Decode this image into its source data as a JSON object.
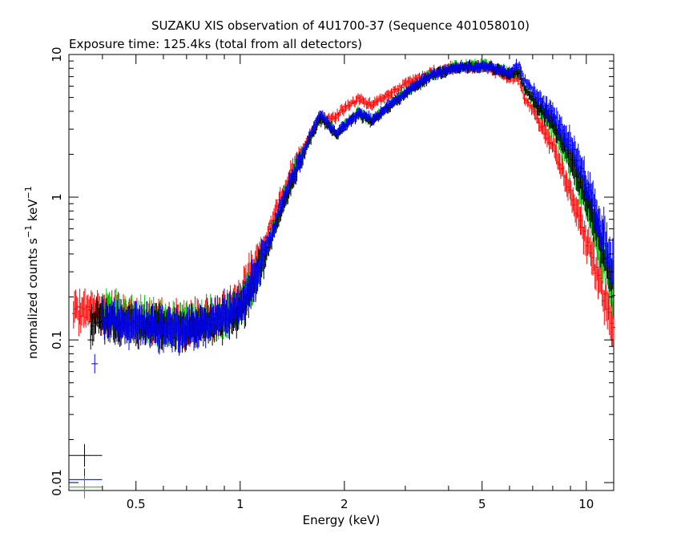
{
  "title": "SUZAKU XIS observation of 4U1700-37 (Sequence 401058010)",
  "subtitle": "Exposure time: 125.4ks (total from all detectors)",
  "chart_data": {
    "type": "scatter",
    "title": "SUZAKU XIS observation of 4U1700-37 (Sequence 401058010)",
    "subtitle": "Exposure time: 125.4ks (total from all detectors)",
    "xlabel": "Energy (keV)",
    "ylabel_parts": {
      "main": "normalized counts s",
      "sup1": "−1",
      "mid": " keV",
      "sup2": "−1"
    },
    "xscale": "log",
    "yscale": "log",
    "xlim": [
      0.32,
      12.0
    ],
    "ylim": [
      0.0088,
      10.0
    ],
    "grid": false,
    "legend": "none",
    "x_ticks": [
      {
        "value": 0.5,
        "label": "0.5"
      },
      {
        "value": 1,
        "label": "1"
      },
      {
        "value": 2,
        "label": "2"
      },
      {
        "value": 5,
        "label": "5"
      },
      {
        "value": 10,
        "label": "10"
      }
    ],
    "y_ticks": [
      {
        "value": 0.01,
        "label": "0.01"
      },
      {
        "value": 0.1,
        "label": "0.1"
      },
      {
        "value": 1,
        "label": "1"
      },
      {
        "value": 10,
        "label": "10"
      }
    ],
    "series": [
      {
        "color": "#ff0000",
        "points": [
          [
            0.33,
            0.15
          ],
          [
            0.36,
            0.16
          ],
          [
            0.4,
            0.16
          ],
          [
            0.45,
            0.15
          ],
          [
            0.5,
            0.14
          ],
          [
            0.6,
            0.13
          ],
          [
            0.7,
            0.13
          ],
          [
            0.8,
            0.14
          ],
          [
            0.9,
            0.16
          ],
          [
            1.0,
            0.2
          ],
          [
            1.1,
            0.33
          ],
          [
            1.2,
            0.55
          ],
          [
            1.3,
            0.95
          ],
          [
            1.4,
            1.5
          ],
          [
            1.5,
            2.1
          ],
          [
            1.6,
            2.8
          ],
          [
            1.7,
            3.6
          ],
          [
            1.8,
            3.6
          ],
          [
            1.9,
            3.7
          ],
          [
            2.0,
            4.2
          ],
          [
            2.2,
            4.9
          ],
          [
            2.4,
            4.4
          ],
          [
            2.6,
            5.0
          ],
          [
            3.0,
            6.2
          ],
          [
            3.5,
            7.3
          ],
          [
            4.0,
            8.0
          ],
          [
            4.5,
            8.3
          ],
          [
            5.0,
            8.2
          ],
          [
            5.5,
            7.6
          ],
          [
            6.0,
            6.8
          ],
          [
            6.4,
            6.7
          ],
          [
            6.6,
            5.0
          ],
          [
            7.0,
            4.1
          ],
          [
            8.0,
            2.3
          ],
          [
            9.0,
            1.1
          ],
          [
            10.0,
            0.5
          ],
          [
            11.0,
            0.25
          ],
          [
            12.0,
            0.11
          ]
        ]
      },
      {
        "color": "#00c800",
        "points": [
          [
            0.4,
            0.16
          ],
          [
            0.45,
            0.15
          ],
          [
            0.5,
            0.14
          ],
          [
            0.6,
            0.13
          ],
          [
            0.7,
            0.13
          ],
          [
            0.8,
            0.14
          ],
          [
            0.9,
            0.15
          ],
          [
            1.0,
            0.17
          ],
          [
            1.1,
            0.27
          ],
          [
            1.2,
            0.45
          ],
          [
            1.3,
            0.8
          ],
          [
            1.4,
            1.3
          ],
          [
            1.5,
            1.9
          ],
          [
            1.6,
            2.7
          ],
          [
            1.7,
            3.7
          ],
          [
            1.8,
            3.3
          ],
          [
            1.9,
            2.8
          ],
          [
            2.0,
            3.2
          ],
          [
            2.2,
            3.9
          ],
          [
            2.4,
            3.5
          ],
          [
            2.6,
            4.1
          ],
          [
            3.0,
            5.4
          ],
          [
            3.5,
            7.0
          ],
          [
            4.0,
            8.0
          ],
          [
            4.5,
            8.4
          ],
          [
            5.0,
            8.4
          ],
          [
            5.5,
            8.0
          ],
          [
            6.0,
            7.4
          ],
          [
            6.4,
            7.6
          ],
          [
            6.6,
            5.8
          ],
          [
            7.0,
            4.9
          ],
          [
            8.0,
            3.1
          ],
          [
            9.0,
            1.7
          ],
          [
            10.0,
            0.9
          ],
          [
            11.0,
            0.45
          ],
          [
            12.0,
            0.2
          ]
        ]
      },
      {
        "color": "#000000",
        "points": [
          [
            0.37,
            0.13
          ],
          [
            0.4,
            0.14
          ],
          [
            0.45,
            0.13
          ],
          [
            0.5,
            0.13
          ],
          [
            0.6,
            0.12
          ],
          [
            0.7,
            0.12
          ],
          [
            0.8,
            0.13
          ],
          [
            0.9,
            0.14
          ],
          [
            1.0,
            0.16
          ],
          [
            1.1,
            0.25
          ],
          [
            1.2,
            0.42
          ],
          [
            1.3,
            0.75
          ],
          [
            1.4,
            1.2
          ],
          [
            1.5,
            1.8
          ],
          [
            1.6,
            2.6
          ],
          [
            1.7,
            3.5
          ],
          [
            1.8,
            3.2
          ],
          [
            1.9,
            2.7
          ],
          [
            2.0,
            3.1
          ],
          [
            2.2,
            3.8
          ],
          [
            2.4,
            3.4
          ],
          [
            2.6,
            4.0
          ],
          [
            3.0,
            5.3
          ],
          [
            3.5,
            6.9
          ],
          [
            4.0,
            7.8
          ],
          [
            4.5,
            8.2
          ],
          [
            5.0,
            8.2
          ],
          [
            5.5,
            7.8
          ],
          [
            6.0,
            7.3
          ],
          [
            6.4,
            7.5
          ],
          [
            6.6,
            5.9
          ],
          [
            7.0,
            5.0
          ],
          [
            8.0,
            3.3
          ],
          [
            9.0,
            1.9
          ],
          [
            10.0,
            1.0
          ],
          [
            11.0,
            0.5
          ],
          [
            12.0,
            0.23
          ]
        ]
      },
      {
        "color": "#0000ff",
        "points": [
          [
            0.4,
            0.14
          ],
          [
            0.45,
            0.13
          ],
          [
            0.5,
            0.13
          ],
          [
            0.6,
            0.12
          ],
          [
            0.7,
            0.12
          ],
          [
            0.8,
            0.13
          ],
          [
            0.9,
            0.15
          ],
          [
            1.0,
            0.17
          ],
          [
            1.1,
            0.27
          ],
          [
            1.2,
            0.46
          ],
          [
            1.3,
            0.82
          ],
          [
            1.4,
            1.3
          ],
          [
            1.5,
            1.9
          ],
          [
            1.6,
            2.8
          ],
          [
            1.7,
            3.8
          ],
          [
            1.8,
            3.3
          ],
          [
            1.9,
            2.8
          ],
          [
            2.0,
            3.2
          ],
          [
            2.2,
            3.9
          ],
          [
            2.4,
            3.5
          ],
          [
            2.6,
            4.1
          ],
          [
            3.0,
            5.4
          ],
          [
            3.5,
            7.0
          ],
          [
            4.0,
            7.9
          ],
          [
            4.5,
            8.2
          ],
          [
            5.0,
            8.2
          ],
          [
            5.5,
            7.9
          ],
          [
            6.0,
            7.4
          ],
          [
            6.4,
            8.6
          ],
          [
            6.6,
            6.6
          ],
          [
            7.0,
            5.6
          ],
          [
            8.0,
            3.8
          ],
          [
            9.0,
            2.3
          ],
          [
            10.0,
            1.3
          ],
          [
            11.0,
            0.65
          ],
          [
            12.0,
            0.3
          ]
        ]
      }
    ],
    "isolated_points": [
      {
        "color": "#000000",
        "x": 0.37,
        "y": 0.1
      },
      {
        "color": "#0000ff",
        "x": 0.38,
        "y": 0.068
      }
    ],
    "corner_markers": [
      {
        "color": "#000000",
        "x": 0.355,
        "y": 0.0155
      },
      {
        "color": "#0000ff",
        "x": 0.355,
        "y": 0.0105
      },
      {
        "color": "#00c800",
        "x": 0.355,
        "y": 0.0093
      }
    ]
  }
}
